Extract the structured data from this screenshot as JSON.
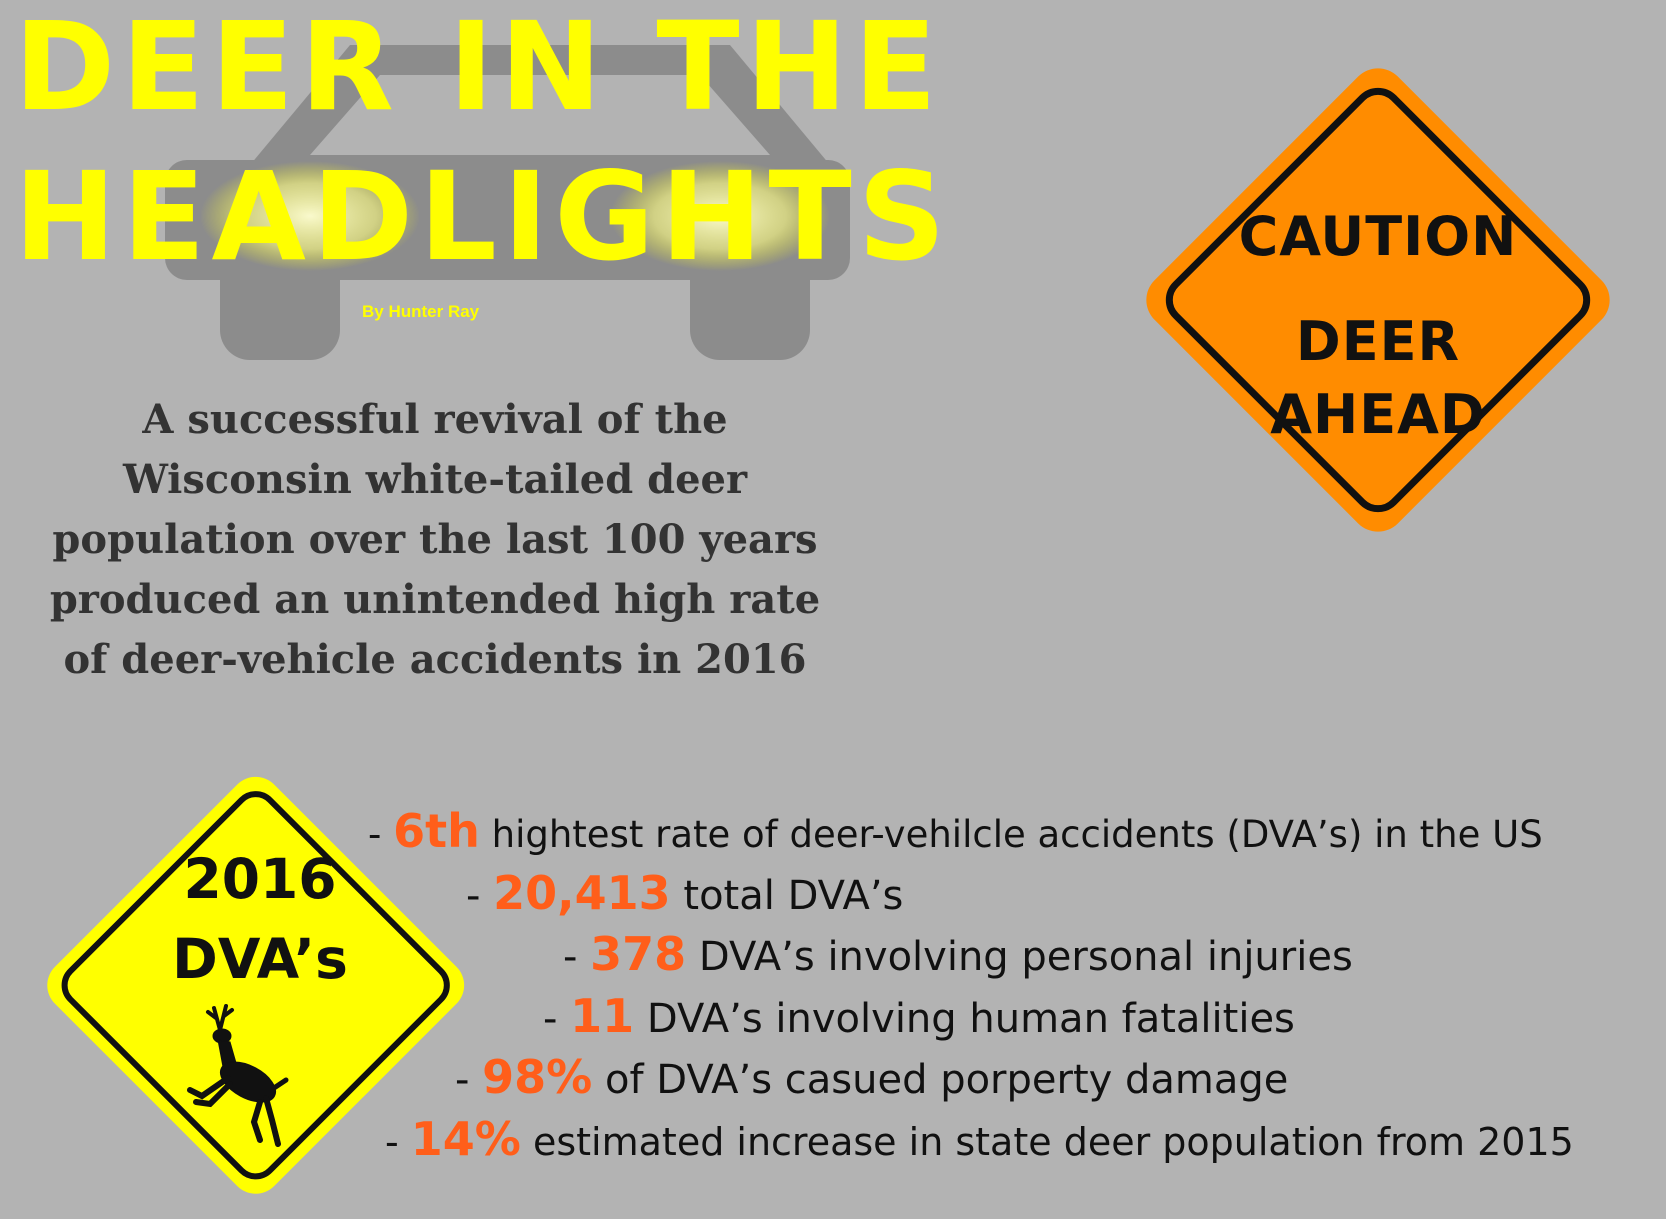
{
  "title": {
    "line1": "DEER IN THE",
    "line2": "HEADLIGHTS"
  },
  "byline": "By Hunter Ray",
  "intro": "A successful revival of the Wisconsin white-tailed deer population over the last 100 years produced an unintended high rate of deer-vehicle accidents in 2016",
  "caution_sign": {
    "line1": "CAUTION",
    "line2": "DEER",
    "line3": "AHEAD"
  },
  "dva_sign": {
    "year": "2016",
    "label": "DVA’s"
  },
  "stats": [
    {
      "prefix": "- ",
      "number": "6th",
      "text": " hightest rate of deer-vehilcle accidents (DVA’s) in the US"
    },
    {
      "prefix": "- ",
      "number": "20,413",
      "text": " total DVA’s"
    },
    {
      "prefix": "- ",
      "number": "378",
      "text": " DVA’s involving personal injuries"
    },
    {
      "prefix": "- ",
      "number": "11",
      "text": " DVA’s involving human fatalities"
    },
    {
      "prefix": "- ",
      "number": "98%",
      "text": " of DVA’s casued porperty damage"
    },
    {
      "prefix": "- ",
      "number": "14%",
      "text": " estimated increase in state deer population from 2015"
    }
  ],
  "colors": {
    "background": "#b3b3b3",
    "title": "#ffff00",
    "caution_sign": "#ff8c00",
    "dva_sign": "#ffff00",
    "stat_number": "#ff5e1a"
  }
}
